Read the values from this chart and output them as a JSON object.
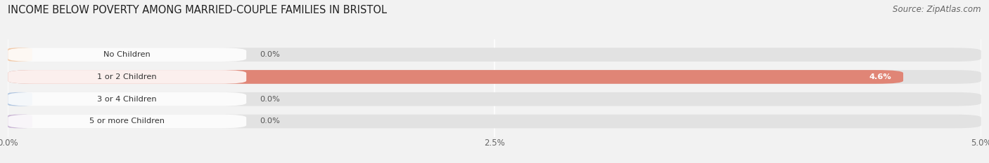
{
  "title": "INCOME BELOW POVERTY AMONG MARRIED-COUPLE FAMILIES IN BRISTOL",
  "source": "Source: ZipAtlas.com",
  "categories": [
    "No Children",
    "1 or 2 Children",
    "3 or 4 Children",
    "5 or more Children"
  ],
  "values": [
    0.0,
    4.6,
    0.0,
    0.0
  ],
  "bar_colors": [
    "#f2c49e",
    "#e07b6a",
    "#a8c0de",
    "#c5aed1"
  ],
  "xlim": [
    0,
    5.0
  ],
  "xticks": [
    0.0,
    2.5,
    5.0
  ],
  "xticklabels": [
    "0.0%",
    "2.5%",
    "5.0%"
  ],
  "background_color": "#f2f2f2",
  "bar_bg_color": "#e2e2e2",
  "title_fontsize": 10.5,
  "source_fontsize": 8.5,
  "bar_height": 0.62,
  "figsize": [
    14.06,
    2.33
  ],
  "dpi": 100
}
